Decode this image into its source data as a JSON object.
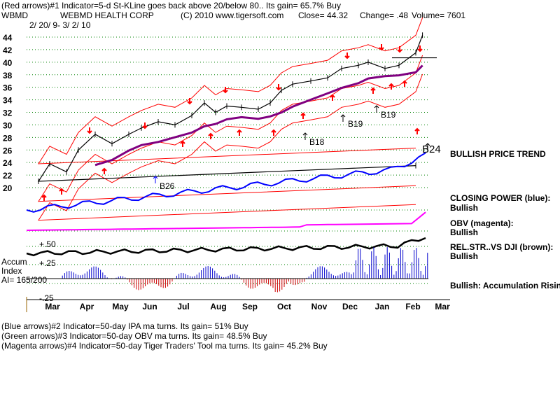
{
  "header": {
    "line1": "(Red arrows)#1 Indicator=5-d St-KLine goes back above 20/below 80.. Its gain= 65.7% Buy",
    "symbol": "WBMD",
    "company": "WEBMD HEALTH CORP",
    "copyright": "(C) 2010 www.tigersoft.com",
    "close": "Close=  44.32",
    "change": "Change= .48",
    "volume": "Volume= 7601",
    "date_range": "2/ 20/ 9- 3/ 2/ 10"
  },
  "footer": {
    "line1": "(Blue arrows)#2 Indicator=50-day IPA ma turns. Its gain= 51% Buy",
    "line2": "(Green arrows)#3 Indicator=50-day OBV ma turns. Its gain= 48.5% Buy",
    "line3": "(Magenta arrows)#4 Indicator=50-day Tiger Traders' Tool ma turns. Its gain= 45.2% Buy"
  },
  "right_labels": {
    "trend": "BULLISH PRICE TREND",
    "closing_power_title": "CLOSING POWER (blue):",
    "closing_power_value": "Bullish",
    "obv_title": "OBV (magenta):",
    "obv_value": "Bullish",
    "relstr_title": "REL.STR..VS DJI (brown):",
    "relstr_value": "Bullish",
    "accum_summary": "Bullish: Accumulation Rising"
  },
  "accum_index": {
    "label1": "Accum",
    "label2": "Index",
    "label3": "AI= 165/200",
    "level_high": "+.50",
    "level_mid": "+.25",
    "level_low": "-.25"
  },
  "chart_data": {
    "type": "line",
    "y_ticks": [
      "44",
      "42",
      "40",
      "38",
      "36",
      "34",
      "32",
      "30",
      "28",
      "26",
      "24",
      "22",
      "20"
    ],
    "ylim": [
      19,
      45
    ],
    "x_ticks": [
      "Mar",
      "Apr",
      "May",
      "Jun",
      "Jul",
      "Aug",
      "Sep",
      "Oct",
      "Nov",
      "Dec",
      "Jan",
      "Feb",
      "Mar"
    ],
    "grid": true,
    "signals": [
      {
        "label": "B18",
        "x": "Oct",
        "y": 28.5
      },
      {
        "label": "B19",
        "x": "Nov",
        "y": 30.6
      },
      {
        "label": "B19",
        "x": "Jan",
        "y": 31.6
      },
      {
        "label": "B24",
        "x": "Feb",
        "y": 25.8
      },
      {
        "label": "B26",
        "x": "Jun",
        "y": 21.3
      }
    ],
    "close_series": {
      "name": "Close",
      "color": "#000000",
      "points": [
        [
          "Feb-20",
          23.5
        ],
        [
          "Mar-05",
          21.0
        ],
        [
          "Mar-15",
          23.8
        ],
        [
          "Mar-30",
          22.5
        ],
        [
          "Apr-10",
          26.0
        ],
        [
          "Apr-25",
          28.5
        ],
        [
          "May-10",
          27.0
        ],
        [
          "May-25",
          28.5
        ],
        [
          "Jun-10",
          29.5
        ],
        [
          "Jun-25",
          30.5
        ],
        [
          "Jul-10",
          30.0
        ],
        [
          "Jul-25",
          31.5
        ],
        [
          "Aug-05",
          33.5
        ],
        [
          "Aug-15",
          32.0
        ],
        [
          "Aug-25",
          33.0
        ],
        [
          "Sep-10",
          32.8
        ],
        [
          "Sep-25",
          32.5
        ],
        [
          "Oct-05",
          33.5
        ],
        [
          "Oct-15",
          35.5
        ],
        [
          "Oct-25",
          36.5
        ],
        [
          "Nov-10",
          37.0
        ],
        [
          "Nov-25",
          37.5
        ],
        [
          "Dec-10",
          39.0
        ],
        [
          "Dec-25",
          39.5
        ],
        [
          "Jan-05",
          40.0
        ],
        [
          "Jan-20",
          39.0
        ],
        [
          "Feb-05",
          39.5
        ],
        [
          "Feb-20",
          41.5
        ],
        [
          "Feb-26",
          44.3
        ]
      ]
    },
    "ma50_series": {
      "name": "",
      "color": "#800080"
    },
    "bands": {
      "color": "#ff0000"
    },
    "closing_power": {
      "name": "CLOSING POWER (blue)",
      "color": "#0000ff"
    },
    "obv": {
      "name": "OBV (magenta)",
      "color": "#ff00ff"
    },
    "relstr": {
      "name": "REL.STR..VS DJI (brown)",
      "color": "#000000"
    },
    "accum_bars": {
      "pos_color": "#0000cc",
      "neg_color": "#cc0000"
    }
  },
  "colors": {
    "grid": "#008000",
    "price_arrows": "#ff0000",
    "blue_arrow": "#0000ff",
    "signal_arrow": "#000000"
  }
}
